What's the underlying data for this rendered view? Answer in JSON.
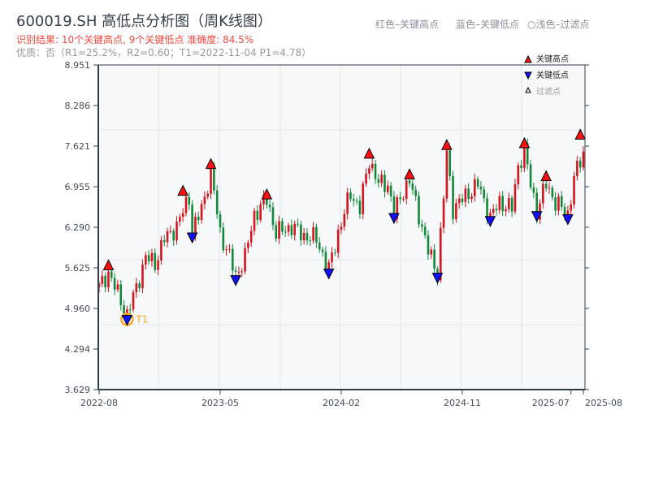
{
  "title": "600019.SH 高低点分析图（周K线图）",
  "result_text": "识别结果: 10个关键高点, 9个关键低点  准确度: 84.5%",
  "quality_text": "优质：否（R1=25.2%，R2=0.60；T1=2022-11-04 P1=4.78）",
  "top_legend": [
    "红色–关键高点",
    "蓝色–关键低点",
    "○浅色–过滤点"
  ],
  "colors": {
    "up": "#d7141d",
    "down": "#13883a",
    "high": "#ff1010",
    "low": "#1010ff",
    "t1": "#f5a623",
    "plot_bg": "#f6f8fa",
    "axis": "#2e3e50"
  },
  "chart_data": {
    "type": "candlestick",
    "title": "600019.SH 高低点分析图（周K线图）",
    "ylim": [
      3.629,
      8.951
    ],
    "yticks": [
      "3.629",
      "4.294",
      "4.960",
      "5.625",
      "6.290",
      "6.955",
      "7.621",
      "8.286",
      "8.951"
    ],
    "xticks": [
      "2022-08",
      "2023-05",
      "2024-02",
      "2024-11",
      "2025-07",
      "2025-08"
    ],
    "xtick_weeks": [
      0,
      39,
      78,
      117,
      152,
      156
    ],
    "weeks": 157,
    "price_path": [
      [
        0,
        5.3
      ],
      [
        3,
        5.55
      ],
      [
        6,
        5.2
      ],
      [
        9,
        4.85
      ],
      [
        12,
        5.3
      ],
      [
        15,
        5.8
      ],
      [
        18,
        5.7
      ],
      [
        21,
        6.1
      ],
      [
        25,
        6.3
      ],
      [
        29,
        6.8
      ],
      [
        30,
        6.2
      ],
      [
        33,
        6.6
      ],
      [
        36,
        7.2
      ],
      [
        39,
        6.2
      ],
      [
        42,
        5.8
      ],
      [
        44,
        5.5
      ],
      [
        47,
        5.8
      ],
      [
        50,
        6.5
      ],
      [
        54,
        6.75
      ],
      [
        57,
        6.2
      ],
      [
        62,
        6.3
      ],
      [
        66,
        6.15
      ],
      [
        70,
        6.1
      ],
      [
        74,
        5.6
      ],
      [
        77,
        6.2
      ],
      [
        81,
        6.85
      ],
      [
        84,
        6.6
      ],
      [
        87,
        7.4
      ],
      [
        90,
        7.0
      ],
      [
        93,
        7.0
      ],
      [
        95,
        6.5
      ],
      [
        98,
        6.9
      ],
      [
        100,
        7.05
      ],
      [
        103,
        6.5
      ],
      [
        106,
        5.9
      ],
      [
        109,
        5.55
      ],
      [
        111,
        6.8
      ],
      [
        112,
        7.5
      ],
      [
        114,
        6.6
      ],
      [
        118,
        6.8
      ],
      [
        122,
        7.0
      ],
      [
        126,
        6.45
      ],
      [
        129,
        6.7
      ],
      [
        133,
        6.6
      ],
      [
        135,
        7.3
      ],
      [
        137,
        7.55
      ],
      [
        139,
        7.0
      ],
      [
        141,
        6.55
      ],
      [
        144,
        7.0
      ],
      [
        147,
        6.7
      ],
      [
        151,
        6.5
      ],
      [
        153,
        7.1
      ],
      [
        156,
        7.5
      ]
    ],
    "legend": [
      {
        "label": "关键高点",
        "marker": "red-up-triangle"
      },
      {
        "label": "关键低点",
        "marker": "blue-down-triangle"
      },
      {
        "label": "过滤点",
        "marker": "light-up-triangle"
      }
    ],
    "key_highs": [
      {
        "week": 3,
        "price": 5.62
      },
      {
        "week": 27,
        "price": 6.84
      },
      {
        "week": 36,
        "price": 7.28
      },
      {
        "week": 54,
        "price": 6.78
      },
      {
        "week": 87,
        "price": 7.45
      },
      {
        "week": 100,
        "price": 7.11
      },
      {
        "week": 112,
        "price": 7.59
      },
      {
        "week": 137,
        "price": 7.62
      },
      {
        "week": 144,
        "price": 7.08
      },
      {
        "week": 155,
        "price": 7.76
      }
    ],
    "key_lows": [
      {
        "week": 9,
        "price": 4.78
      },
      {
        "week": 30,
        "price": 6.13
      },
      {
        "week": 44,
        "price": 5.43
      },
      {
        "week": 74,
        "price": 5.54
      },
      {
        "week": 95,
        "price": 6.45
      },
      {
        "week": 109,
        "price": 5.47
      },
      {
        "week": 126,
        "price": 6.4
      },
      {
        "week": 141,
        "price": 6.48
      },
      {
        "week": 151,
        "price": 6.43
      }
    ],
    "t1": {
      "label": "T1",
      "week": 9,
      "price": 4.78
    }
  }
}
